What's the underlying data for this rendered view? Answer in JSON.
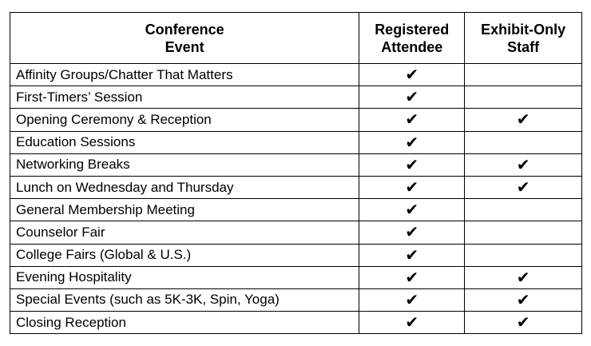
{
  "table": {
    "headers": [
      {
        "line1": "Conference",
        "line2": "Event"
      },
      {
        "line1": "Registered",
        "line2": "Attendee"
      },
      {
        "line1": "Exhibit-Only",
        "line2": "Staff"
      }
    ],
    "check_glyph": "✔",
    "rows": [
      {
        "event": "Affinity Groups/Chatter That Matters",
        "registered": true,
        "exhibit": false
      },
      {
        "event": "First-Timers’ Session",
        "registered": true,
        "exhibit": false
      },
      {
        "event": "Opening Ceremony & Reception",
        "registered": true,
        "exhibit": true
      },
      {
        "event": "Education Sessions",
        "registered": true,
        "exhibit": false
      },
      {
        "event": "Networking Breaks",
        "registered": true,
        "exhibit": true
      },
      {
        "event": "Lunch on Wednesday and Thursday",
        "registered": true,
        "exhibit": true
      },
      {
        "event": "General Membership Meeting",
        "registered": true,
        "exhibit": false
      },
      {
        "event": "Counselor Fair",
        "registered": true,
        "exhibit": false
      },
      {
        "event": "College Fairs (Global & U.S.)",
        "registered": true,
        "exhibit": false
      },
      {
        "event": "Evening Hospitality",
        "registered": true,
        "exhibit": true
      },
      {
        "event": "Special Events (such as 5K-3K, Spin, Yoga)",
        "registered": true,
        "exhibit": true
      },
      {
        "event": "Closing Reception",
        "registered": true,
        "exhibit": true
      }
    ]
  }
}
